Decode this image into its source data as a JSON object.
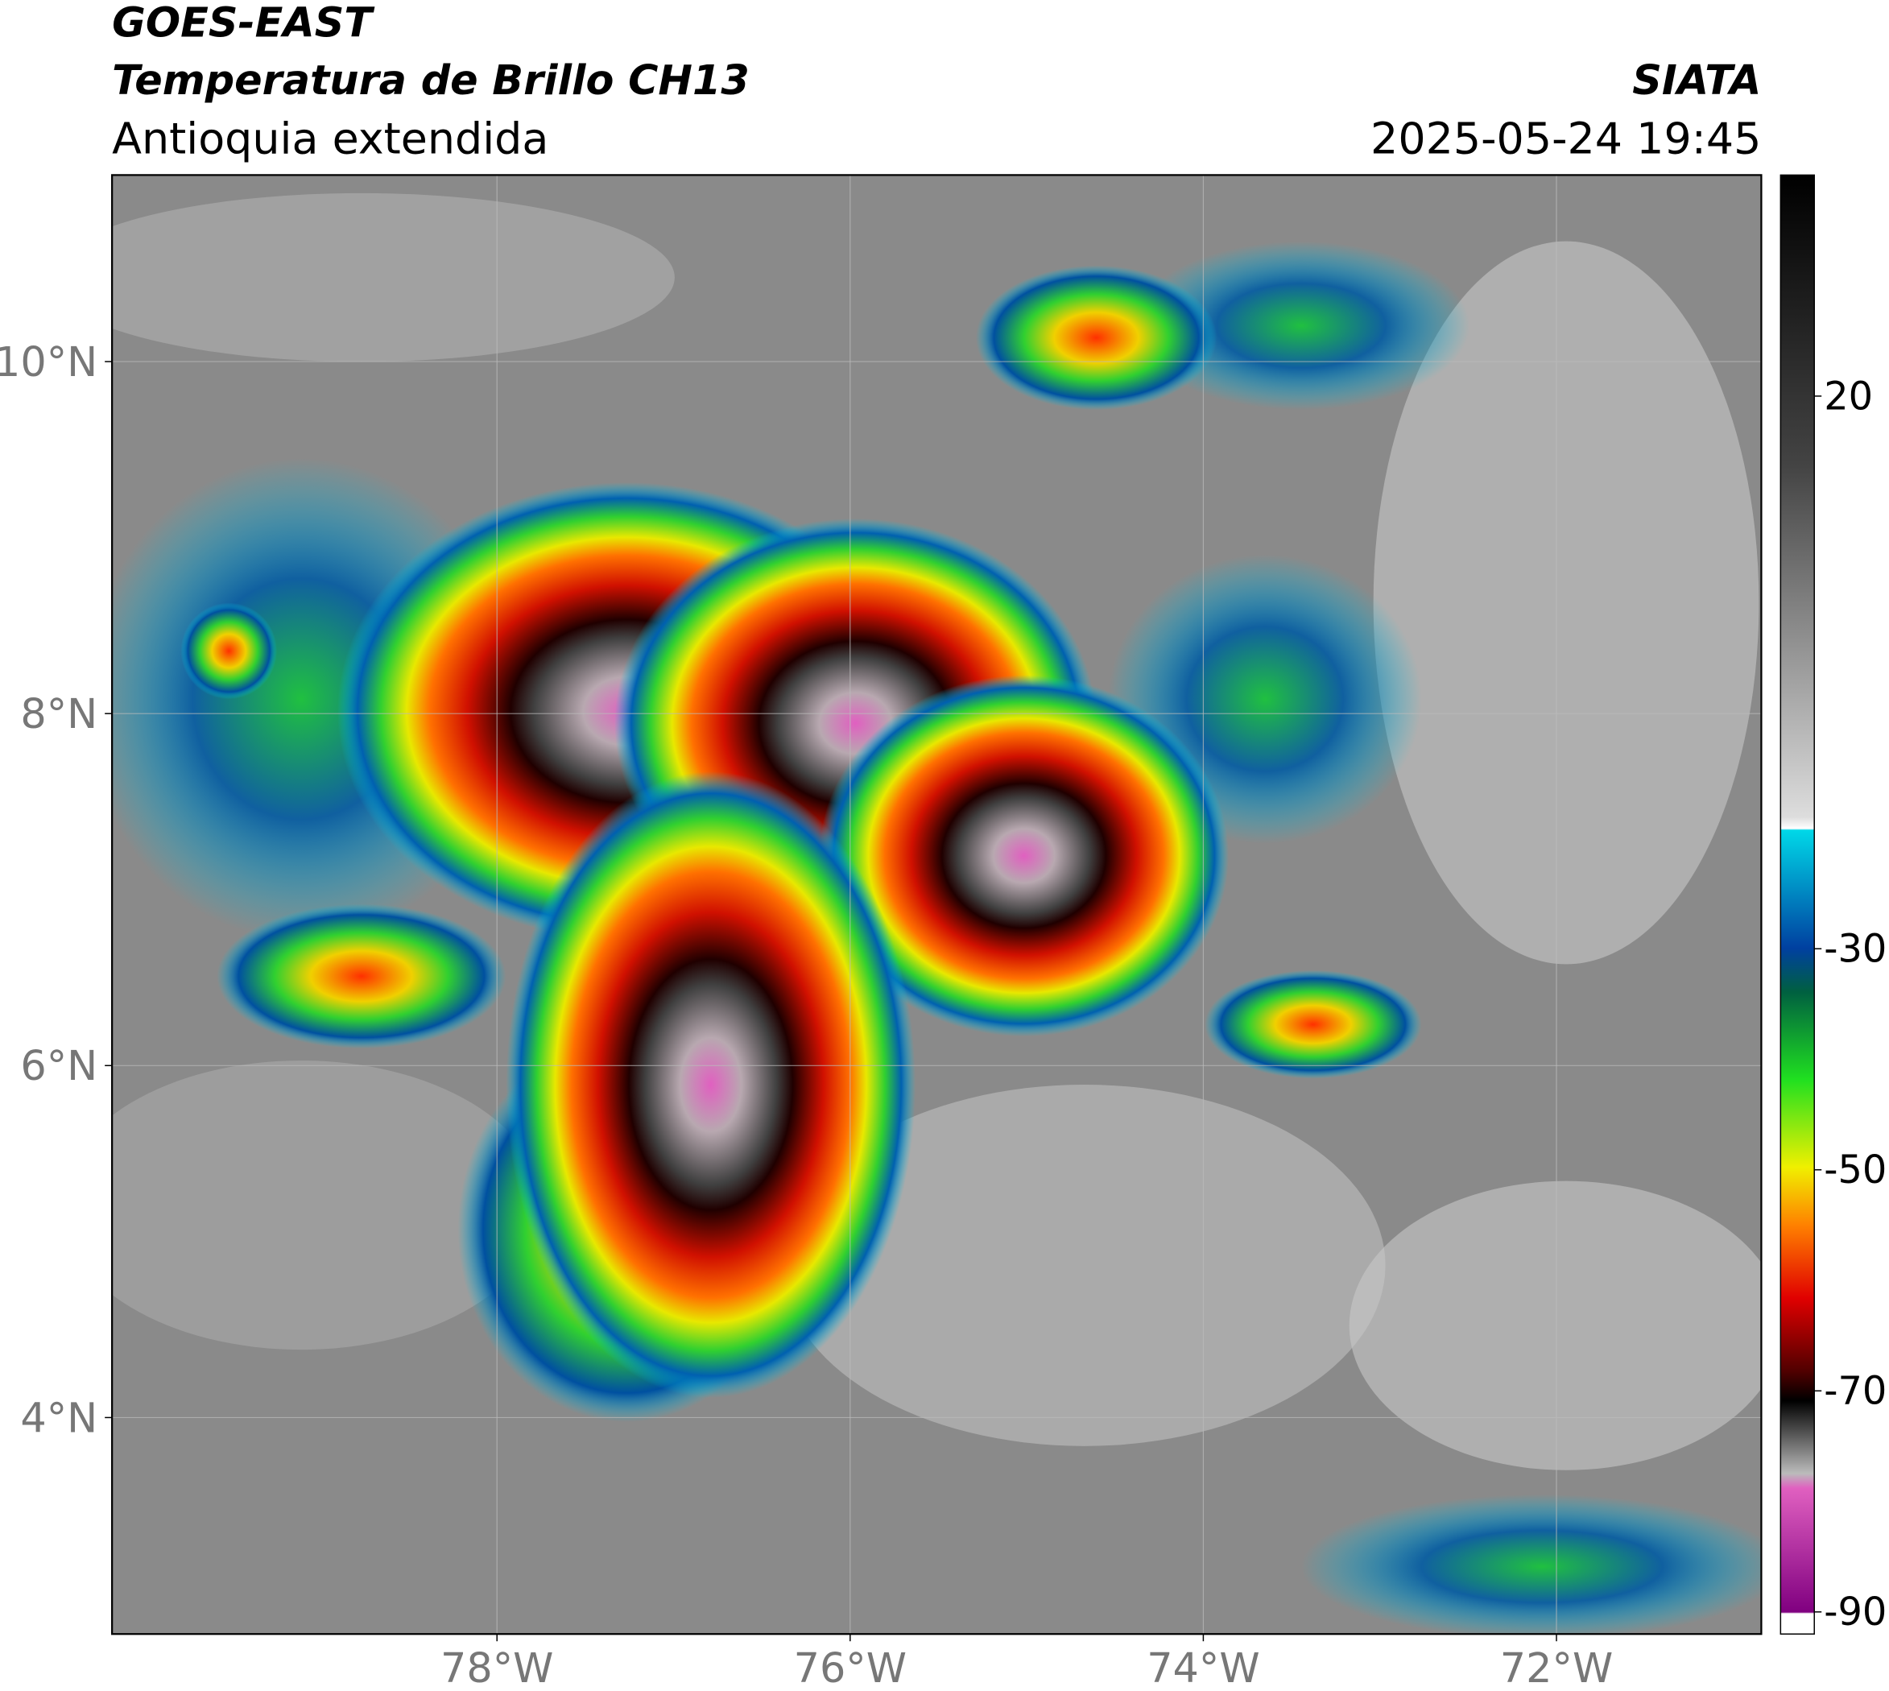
{
  "header": {
    "title": "GOES-EAST",
    "subtitle": "Temperatura de Brillo CH13",
    "region": "Antioquia extendida",
    "source": "SIATA",
    "timestamp": "2025-05-24 19:45"
  },
  "map": {
    "xlim": [
      -80.18,
      -70.84
    ],
    "ylim": [
      2.77,
      11.06
    ],
    "xticks": [
      {
        "value": -78,
        "label": "78°W"
      },
      {
        "value": -76,
        "label": "76°W"
      },
      {
        "value": -74,
        "label": "74°W"
      },
      {
        "value": -72,
        "label": "72°W"
      }
    ],
    "yticks": [
      {
        "value": 4,
        "label": "4°N"
      },
      {
        "value": 6,
        "label": "6°N"
      },
      {
        "value": 8,
        "label": "8°N"
      },
      {
        "value": 10,
        "label": "10°N"
      }
    ]
  },
  "colorbar": {
    "lim": [
      -92,
      40
    ],
    "ticks": [
      20,
      -30,
      -50,
      -70,
      -90
    ]
  }
}
